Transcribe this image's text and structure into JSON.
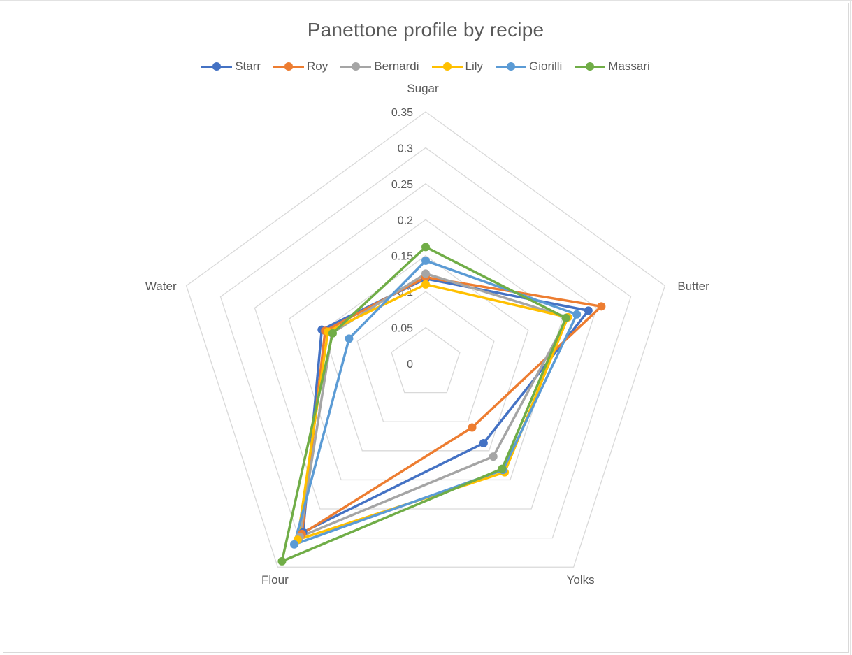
{
  "chart_data": {
    "type": "radar",
    "title": "Panettone profile by recipe",
    "axes": [
      "Sugar",
      "Butter",
      "Yolks",
      "Flour",
      "Water"
    ],
    "rlim": [
      0,
      0.35
    ],
    "ticks": [
      "0",
      "0.05",
      "0.1",
      "0.15",
      "0.2",
      "0.25",
      "0.3",
      "0.35"
    ],
    "legend_position": "top",
    "grid": true,
    "series": [
      {
        "name": "Starr",
        "color": "#4472C4",
        "values": [
          0.118,
          0.238,
          0.137,
          0.29,
          0.152
        ]
      },
      {
        "name": "Roy",
        "color": "#ED7D31",
        "values": [
          0.12,
          0.257,
          0.11,
          0.293,
          0.147
        ]
      },
      {
        "name": "Bernardi",
        "color": "#A5A5A5",
        "values": [
          0.125,
          0.208,
          0.16,
          0.298,
          0.137
        ]
      },
      {
        "name": "Lily",
        "color": "#FFC000",
        "values": [
          0.11,
          0.208,
          0.187,
          0.303,
          0.143
        ]
      },
      {
        "name": "Giorilli",
        "color": "#5B9BD5",
        "values": [
          0.143,
          0.221,
          0.183,
          0.311,
          0.112
        ]
      },
      {
        "name": "Massari",
        "color": "#70AD47",
        "values": [
          0.162,
          0.205,
          0.181,
          0.34,
          0.136
        ]
      }
    ]
  }
}
